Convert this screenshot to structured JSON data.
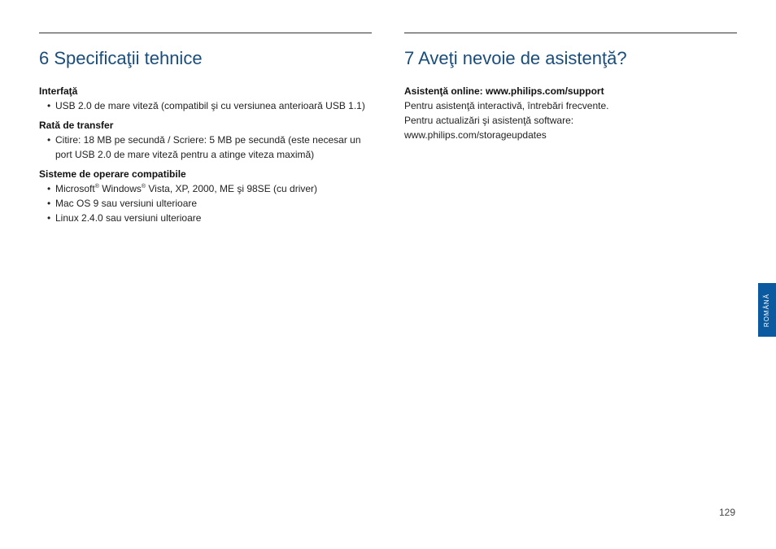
{
  "left": {
    "title": "6  Specificaţii tehnice",
    "sub1": "Interfaţă",
    "sub1_item": "USB 2.0 de mare viteză (compatibil şi cu versiunea anterioară USB 1.1)",
    "sub2": "Rată de transfer",
    "sub2_item": "Citire: 18 MB pe secundă / Scriere: 5 MB pe secundă (este necesar un port USB 2.0 de mare viteză pentru a atinge viteza maximă)",
    "sub3": "Sisteme de operare compatibile",
    "sub3_item1_pre": "Microsoft",
    "sub3_item1_mid": " Windows",
    "sub3_item1_post": " Vista, XP, 2000, ME şi 98SE (cu driver)",
    "sub3_item2": "Mac OS 9 sau versiuni ulterioare",
    "sub3_item3": "Linux 2.4.0 sau versiuni ulterioare"
  },
  "right": {
    "title": "7  Aveţi nevoie de asistenţă?",
    "sub1": "Asistenţă online: www.philips.com/support",
    "line1": "Pentru asistenţă interactivă, întrebări frecvente.",
    "line2": "Pentru actualizări şi asistenţă software:",
    "line3": "www.philips.com/storageupdates"
  },
  "lang_tab": "ROMÂNĂ",
  "page_number": "129",
  "reg_mark": "®"
}
